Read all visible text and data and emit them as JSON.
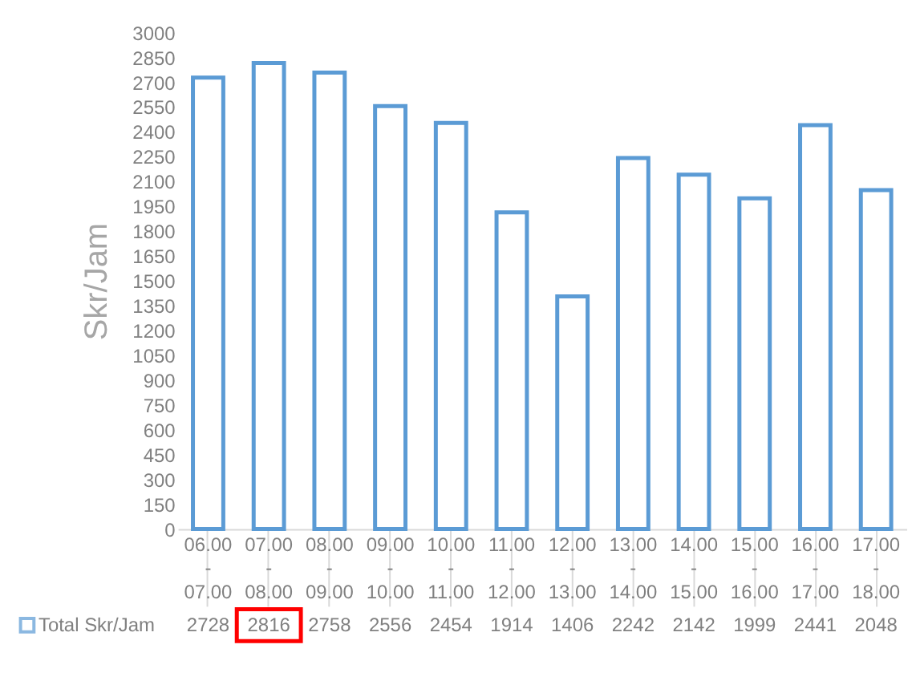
{
  "chart_data": {
    "type": "bar",
    "ylabel": "Skr/Jam",
    "categories": [
      "06.00\n-\n07.00",
      "07.00\n-\n08.00",
      "08.00\n-\n09.00",
      "09.00\n-\n10.00",
      "10.00\n-\n11.00",
      "11.00\n-\n12.00",
      "12.00\n-\n13.00",
      "13.00\n-\n14.00",
      "14.00\n-\n15.00",
      "15.00\n-\n16.00",
      "16.00\n-\n17.00",
      "17.00\n-\n18.00"
    ],
    "series": [
      {
        "name": "Total Skr/Jam",
        "color": "#5b9bd5",
        "values": [
          2728,
          2816,
          2758,
          2556,
          2454,
          1914,
          1406,
          2242,
          2142,
          1999,
          2441,
          2048
        ]
      }
    ],
    "ylim": [
      0,
      3000
    ],
    "yticks": [
      0,
      150,
      300,
      450,
      600,
      750,
      900,
      1050,
      1200,
      1350,
      1500,
      1650,
      1800,
      1950,
      2100,
      2250,
      2400,
      2550,
      2700,
      2850,
      3000
    ],
    "grid": false,
    "legend": "bottom left",
    "data_labels": true
  }
}
